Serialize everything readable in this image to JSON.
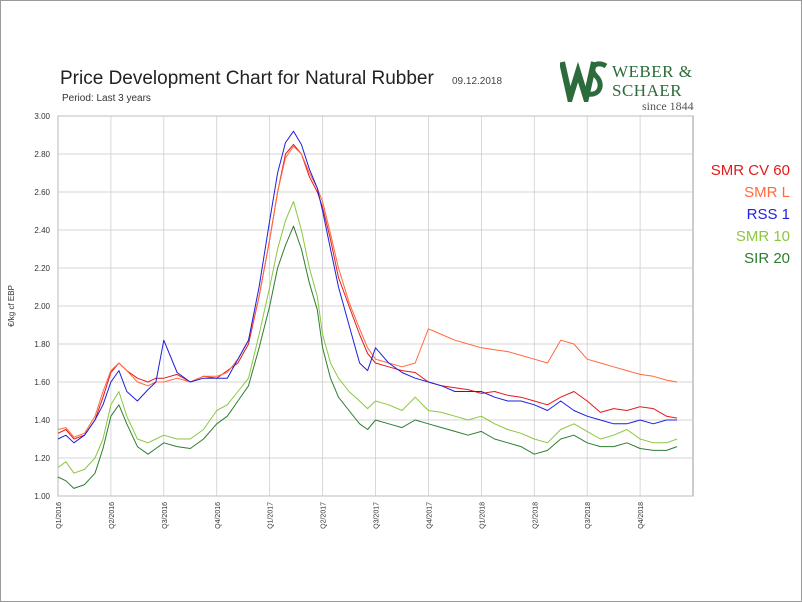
{
  "title": "Price Development Chart for Natural Rubber",
  "date": "09.12.2018",
  "subtitle": "Period: Last 3 years",
  "logo": {
    "line1": "WEBER &",
    "line2": "SCHAER",
    "line3": "since 1844",
    "mark": "WS",
    "color": "#2c6b3b"
  },
  "chart_data": {
    "type": "line",
    "ylabel": "€/kg cf EBP",
    "ylim": [
      1.0,
      3.0
    ],
    "yticks": [
      "1.00",
      "1.20",
      "1.40",
      "1.60",
      "1.80",
      "2.00",
      "2.20",
      "2.40",
      "2.60",
      "2.80",
      "3.00"
    ],
    "xticks": [
      "Q1/2016",
      "Q2/2016",
      "Q3/2016",
      "Q4/2016",
      "Q1/2017",
      "Q2/2017",
      "Q3/2017",
      "Q4/2017",
      "Q1/2018",
      "Q2/2018",
      "Q3/2018",
      "Q4/2018"
    ],
    "grid": true,
    "legend_position": "right",
    "x": [
      0,
      0.15,
      0.3,
      0.5,
      0.7,
      0.85,
      1.0,
      1.15,
      1.3,
      1.5,
      1.7,
      1.85,
      2.0,
      2.25,
      2.5,
      2.75,
      3.0,
      3.2,
      3.4,
      3.6,
      3.8,
      4.0,
      4.15,
      4.3,
      4.45,
      4.6,
      4.75,
      4.9,
      5.0,
      5.15,
      5.3,
      5.5,
      5.7,
      5.85,
      6.0,
      6.25,
      6.5,
      6.75,
      7.0,
      7.25,
      7.5,
      7.75,
      8.0,
      8.25,
      8.5,
      8.75,
      9.0,
      9.25,
      9.5,
      9.75,
      10.0,
      10.25,
      10.5,
      10.75,
      11.0,
      11.25,
      11.5,
      11.7
    ],
    "series": [
      {
        "name": "SMR CV 60",
        "color": "#e31a1c",
        "values": [
          1.33,
          1.35,
          1.3,
          1.32,
          1.4,
          1.52,
          1.65,
          1.7,
          1.66,
          1.62,
          1.6,
          1.62,
          1.62,
          1.64,
          1.6,
          1.63,
          1.62,
          1.66,
          1.7,
          1.8,
          2.05,
          2.35,
          2.6,
          2.8,
          2.85,
          2.8,
          2.68,
          2.6,
          2.52,
          2.35,
          2.15,
          2.0,
          1.85,
          1.75,
          1.7,
          1.68,
          1.66,
          1.65,
          1.6,
          1.58,
          1.57,
          1.56,
          1.54,
          1.55,
          1.53,
          1.52,
          1.5,
          1.48,
          1.52,
          1.55,
          1.5,
          1.44,
          1.46,
          1.45,
          1.47,
          1.46,
          1.42,
          1.41
        ]
      },
      {
        "name": "SMR L",
        "color": "#ff6a3d",
        "values": [
          1.35,
          1.36,
          1.31,
          1.33,
          1.42,
          1.55,
          1.66,
          1.7,
          1.66,
          1.6,
          1.58,
          1.6,
          1.6,
          1.62,
          1.6,
          1.63,
          1.63,
          1.65,
          1.72,
          1.82,
          2.05,
          2.35,
          2.6,
          2.78,
          2.84,
          2.8,
          2.7,
          2.62,
          2.55,
          2.38,
          2.2,
          2.02,
          1.88,
          1.78,
          1.72,
          1.7,
          1.68,
          1.7,
          1.88,
          1.85,
          1.82,
          1.8,
          1.78,
          1.77,
          1.76,
          1.74,
          1.72,
          1.7,
          1.82,
          1.8,
          1.72,
          1.7,
          1.68,
          1.66,
          1.64,
          1.63,
          1.61,
          1.6
        ]
      },
      {
        "name": "RSS 1",
        "color": "#1f1fdd",
        "values": [
          1.3,
          1.32,
          1.28,
          1.32,
          1.4,
          1.48,
          1.6,
          1.66,
          1.55,
          1.5,
          1.56,
          1.6,
          1.82,
          1.65,
          1.6,
          1.62,
          1.62,
          1.62,
          1.72,
          1.82,
          2.1,
          2.45,
          2.7,
          2.86,
          2.92,
          2.85,
          2.72,
          2.62,
          2.5,
          2.3,
          2.1,
          1.9,
          1.7,
          1.66,
          1.78,
          1.7,
          1.65,
          1.62,
          1.6,
          1.58,
          1.55,
          1.55,
          1.55,
          1.52,
          1.5,
          1.5,
          1.48,
          1.45,
          1.5,
          1.45,
          1.42,
          1.4,
          1.38,
          1.38,
          1.4,
          1.38,
          1.4,
          1.4
        ]
      },
      {
        "name": "SMR 10",
        "color": "#8dc63f",
        "values": [
          1.15,
          1.18,
          1.12,
          1.14,
          1.2,
          1.3,
          1.48,
          1.55,
          1.42,
          1.3,
          1.28,
          1.3,
          1.32,
          1.3,
          1.3,
          1.35,
          1.45,
          1.48,
          1.55,
          1.62,
          1.85,
          2.1,
          2.3,
          2.45,
          2.55,
          2.4,
          2.2,
          2.05,
          1.85,
          1.7,
          1.62,
          1.55,
          1.5,
          1.46,
          1.5,
          1.48,
          1.45,
          1.52,
          1.45,
          1.44,
          1.42,
          1.4,
          1.42,
          1.38,
          1.35,
          1.33,
          1.3,
          1.28,
          1.35,
          1.38,
          1.34,
          1.3,
          1.32,
          1.35,
          1.3,
          1.28,
          1.28,
          1.3
        ]
      },
      {
        "name": "SIR 20",
        "color": "#2e7d32",
        "values": [
          1.1,
          1.08,
          1.04,
          1.06,
          1.12,
          1.25,
          1.42,
          1.48,
          1.38,
          1.26,
          1.22,
          1.25,
          1.28,
          1.26,
          1.25,
          1.3,
          1.38,
          1.42,
          1.5,
          1.58,
          1.78,
          2.0,
          2.2,
          2.32,
          2.42,
          2.3,
          2.12,
          1.98,
          1.78,
          1.62,
          1.52,
          1.45,
          1.38,
          1.35,
          1.4,
          1.38,
          1.36,
          1.4,
          1.38,
          1.36,
          1.34,
          1.32,
          1.34,
          1.3,
          1.28,
          1.26,
          1.22,
          1.24,
          1.3,
          1.32,
          1.28,
          1.26,
          1.26,
          1.28,
          1.25,
          1.24,
          1.24,
          1.26
        ]
      }
    ]
  }
}
